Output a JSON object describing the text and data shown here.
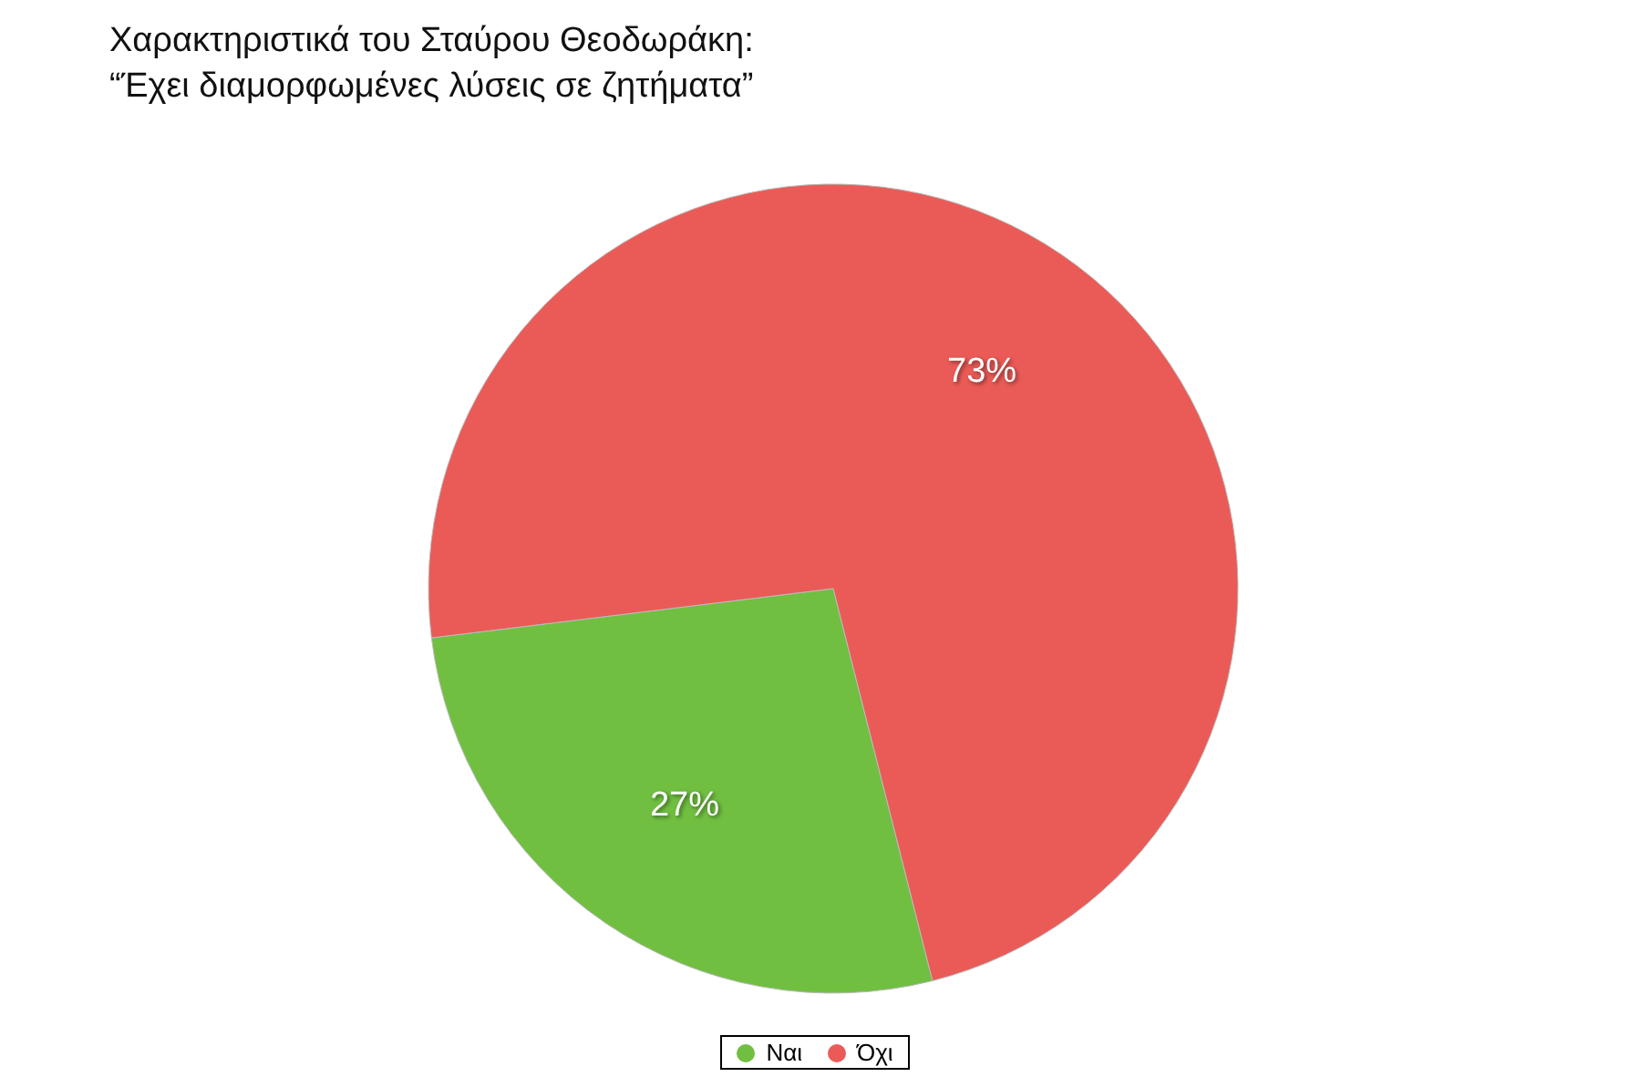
{
  "chart_data": {
    "type": "pie",
    "title": "Χαρακτηριστικά του Σταύρου Θεοδωράκη:",
    "subtitle": "“Έχει διαμορφωμένες λύσεις σε ζητήματα”",
    "categories": [
      "Ναι",
      "Όχι"
    ],
    "values": [
      27,
      73
    ],
    "colors": [
      "#70bf41",
      "#ea5b57"
    ],
    "value_labels": [
      "27%",
      "73%"
    ],
    "legend": "bottom"
  }
}
